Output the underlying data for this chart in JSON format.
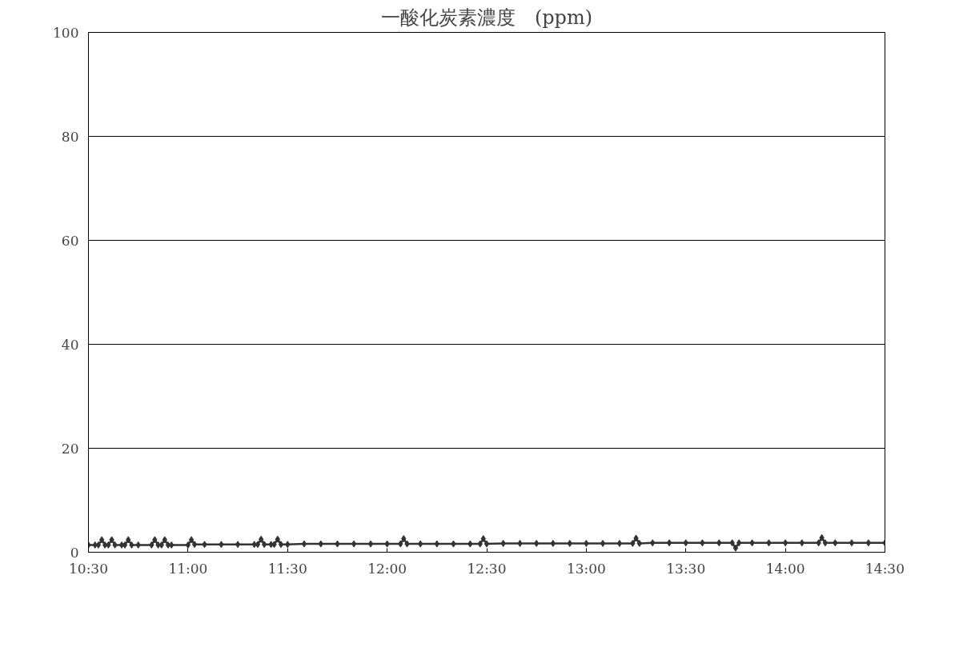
{
  "chart_data": {
    "type": "line",
    "title": "一酸化炭素濃度　(ppm)",
    "x": [
      10.5,
      10.533,
      10.55,
      10.567,
      10.583,
      10.6,
      10.617,
      10.633,
      10.667,
      10.683,
      10.7,
      10.717,
      10.75,
      10.817,
      10.833,
      10.85,
      10.867,
      10.883,
      10.9,
      10.917,
      11.0,
      11.017,
      11.033,
      11.083,
      11.167,
      11.25,
      11.333,
      11.35,
      11.367,
      11.383,
      11.417,
      11.433,
      11.45,
      11.467,
      11.5,
      11.583,
      11.667,
      11.75,
      11.833,
      11.917,
      12.0,
      12.067,
      12.083,
      12.1,
      12.167,
      12.25,
      12.333,
      12.417,
      12.467,
      12.483,
      12.5,
      12.583,
      12.667,
      12.75,
      12.833,
      12.917,
      13.0,
      13.083,
      13.167,
      13.233,
      13.25,
      13.267,
      13.333,
      13.417,
      13.5,
      13.583,
      13.667,
      13.733,
      13.75,
      13.767,
      13.833,
      13.917,
      14.0,
      14.083,
      14.167,
      14.183,
      14.2,
      14.25,
      14.333,
      14.417,
      14.5
    ],
    "series": [
      {
        "color": "#333333",
        "values": [
          1.4,
          1.4,
          1.4,
          2.4,
          1.4,
          1.4,
          2.4,
          1.4,
          1.4,
          1.4,
          2.4,
          1.4,
          1.4,
          1.4,
          2.4,
          1.4,
          1.4,
          2.4,
          1.4,
          1.4,
          1.4,
          2.4,
          1.5,
          1.5,
          1.5,
          1.5,
          1.5,
          1.5,
          2.5,
          1.5,
          1.5,
          1.5,
          2.5,
          1.5,
          1.5,
          1.6,
          1.6,
          1.6,
          1.6,
          1.6,
          1.6,
          1.6,
          2.6,
          1.6,
          1.6,
          1.6,
          1.6,
          1.6,
          1.6,
          2.6,
          1.6,
          1.7,
          1.7,
          1.7,
          1.7,
          1.7,
          1.7,
          1.7,
          1.7,
          1.7,
          2.7,
          1.7,
          1.8,
          1.8,
          1.8,
          1.8,
          1.8,
          1.8,
          0.8,
          1.8,
          1.8,
          1.8,
          1.8,
          1.8,
          1.8,
          2.8,
          1.8,
          1.8,
          1.8,
          1.8,
          1.8
        ]
      }
    ],
    "xlim": [
      10.5,
      14.5
    ],
    "xticks": [
      {
        "value": 10.5,
        "label": "10:30"
      },
      {
        "value": 11.0,
        "label": "11:00"
      },
      {
        "value": 11.5,
        "label": "11:30"
      },
      {
        "value": 12.0,
        "label": "12:00"
      },
      {
        "value": 12.5,
        "label": "12:30"
      },
      {
        "value": 13.0,
        "label": "13:00"
      },
      {
        "value": 13.5,
        "label": "13:30"
      },
      {
        "value": 14.0,
        "label": "14:00"
      },
      {
        "value": 14.5,
        "label": "14:30"
      }
    ],
    "ylim": [
      0,
      100
    ],
    "yticks": [
      0,
      20,
      40,
      60,
      80,
      100
    ],
    "grid": "y",
    "marker": "diamond",
    "line_style": "solid"
  }
}
